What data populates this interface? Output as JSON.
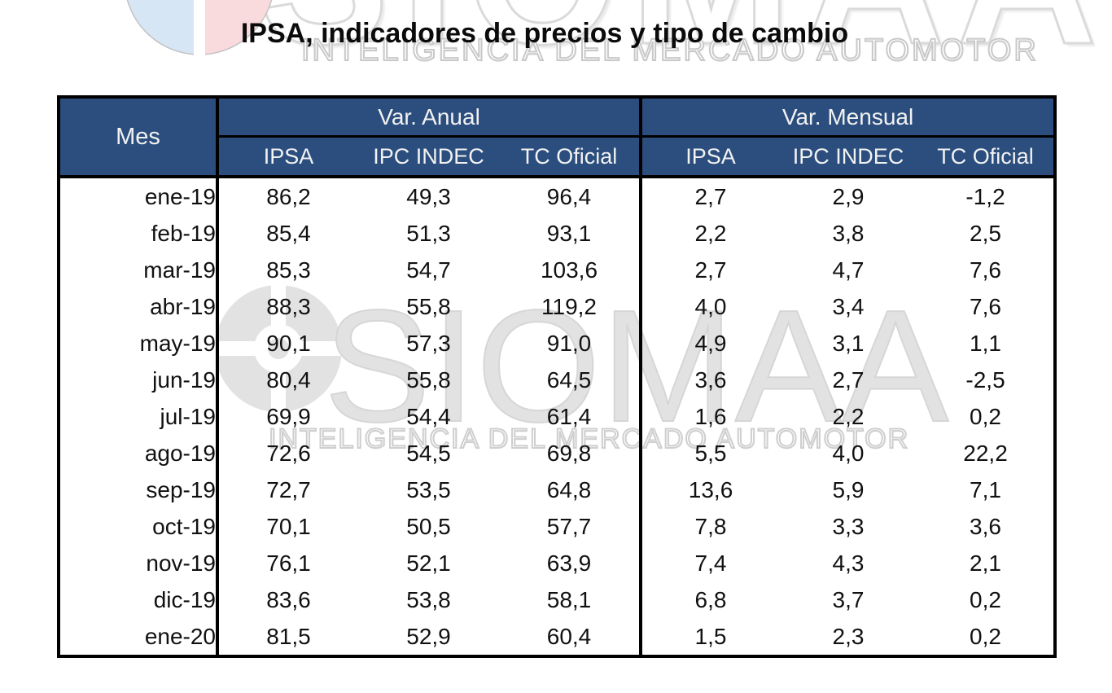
{
  "title": "IPSA, indicadores de precios y tipo de cambio",
  "watermark": {
    "brand": "SIOMAA",
    "tagline": "INTELIGENCIA DEL MERCADO AUTOMOTOR"
  },
  "colors": {
    "header_bg": "#2b4e7e",
    "header_text": "#f2f2f2",
    "border": "#000000",
    "body_text": "#111111",
    "watermark_gray": "#e2e2e2",
    "logo_blue": "#d7e6f4",
    "logo_pink": "#f9dadd"
  },
  "table": {
    "month_header": "Mes",
    "groups": [
      {
        "label": "Var. Anual",
        "sub": [
          "IPSA",
          "IPC INDEC",
          "TC Oficial"
        ]
      },
      {
        "label": "Var. Mensual",
        "sub": [
          "IPSA",
          "IPC INDEC",
          "TC Oficial"
        ]
      }
    ],
    "rows": [
      {
        "month": "ene-19",
        "values": [
          "86,2",
          "49,3",
          "96,4",
          "2,7",
          "2,9",
          "-1,2"
        ]
      },
      {
        "month": "feb-19",
        "values": [
          "85,4",
          "51,3",
          "93,1",
          "2,2",
          "3,8",
          "2,5"
        ]
      },
      {
        "month": "mar-19",
        "values": [
          "85,3",
          "54,7",
          "103,6",
          "2,7",
          "4,7",
          "7,6"
        ]
      },
      {
        "month": "abr-19",
        "values": [
          "88,3",
          "55,8",
          "119,2",
          "4,0",
          "3,4",
          "7,6"
        ]
      },
      {
        "month": "may-19",
        "values": [
          "90,1",
          "57,3",
          "91,0",
          "4,9",
          "3,1",
          "1,1"
        ]
      },
      {
        "month": "jun-19",
        "values": [
          "80,4",
          "55,8",
          "64,5",
          "3,6",
          "2,7",
          "-2,5"
        ]
      },
      {
        "month": "jul-19",
        "values": [
          "69,9",
          "54,4",
          "61,4",
          "1,6",
          "2,2",
          "0,2"
        ]
      },
      {
        "month": "ago-19",
        "values": [
          "72,6",
          "54,5",
          "69,8",
          "5,5",
          "4,0",
          "22,2"
        ]
      },
      {
        "month": "sep-19",
        "values": [
          "72,7",
          "53,5",
          "64,8",
          "13,6",
          "5,9",
          "7,1"
        ]
      },
      {
        "month": "oct-19",
        "values": [
          "70,1",
          "50,5",
          "57,7",
          "7,8",
          "3,3",
          "3,6"
        ]
      },
      {
        "month": "nov-19",
        "values": [
          "76,1",
          "52,1",
          "63,9",
          "7,4",
          "4,3",
          "2,1"
        ]
      },
      {
        "month": "dic-19",
        "values": [
          "83,6",
          "53,8",
          "58,1",
          "6,8",
          "3,7",
          "0,2"
        ]
      },
      {
        "month": "ene-20",
        "values": [
          "81,5",
          "52,9",
          "60,4",
          "1,5",
          "2,3",
          "0,2"
        ]
      }
    ]
  },
  "chart_data": {
    "type": "table",
    "title": "IPSA, indicadores de precios y tipo de cambio",
    "categories": [
      "ene-19",
      "feb-19",
      "mar-19",
      "abr-19",
      "may-19",
      "jun-19",
      "jul-19",
      "ago-19",
      "sep-19",
      "oct-19",
      "nov-19",
      "dic-19",
      "ene-20"
    ],
    "series": [
      {
        "name": "Var. Anual IPSA",
        "values": [
          86.2,
          85.4,
          85.3,
          88.3,
          90.1,
          80.4,
          69.9,
          72.6,
          72.7,
          70.1,
          76.1,
          83.6,
          81.5
        ]
      },
      {
        "name": "Var. Anual IPC INDEC",
        "values": [
          49.3,
          51.3,
          54.7,
          55.8,
          57.3,
          55.8,
          54.4,
          54.5,
          53.5,
          50.5,
          52.1,
          53.8,
          52.9
        ]
      },
      {
        "name": "Var. Anual TC Oficial",
        "values": [
          96.4,
          93.1,
          103.6,
          119.2,
          91.0,
          64.5,
          61.4,
          69.8,
          64.8,
          57.7,
          63.9,
          58.1,
          60.4
        ]
      },
      {
        "name": "Var. Mensual IPSA",
        "values": [
          2.7,
          2.2,
          2.7,
          4.0,
          4.9,
          3.6,
          1.6,
          5.5,
          13.6,
          7.8,
          7.4,
          6.8,
          1.5
        ]
      },
      {
        "name": "Var. Mensual IPC INDEC",
        "values": [
          2.9,
          3.8,
          4.7,
          3.4,
          3.1,
          2.7,
          2.2,
          4.0,
          5.9,
          3.3,
          4.3,
          3.7,
          2.3
        ]
      },
      {
        "name": "Var. Mensual TC Oficial",
        "values": [
          -1.2,
          2.5,
          7.6,
          7.6,
          1.1,
          -2.5,
          0.2,
          22.2,
          7.1,
          3.6,
          2.1,
          0.2,
          0.2
        ]
      }
    ]
  }
}
